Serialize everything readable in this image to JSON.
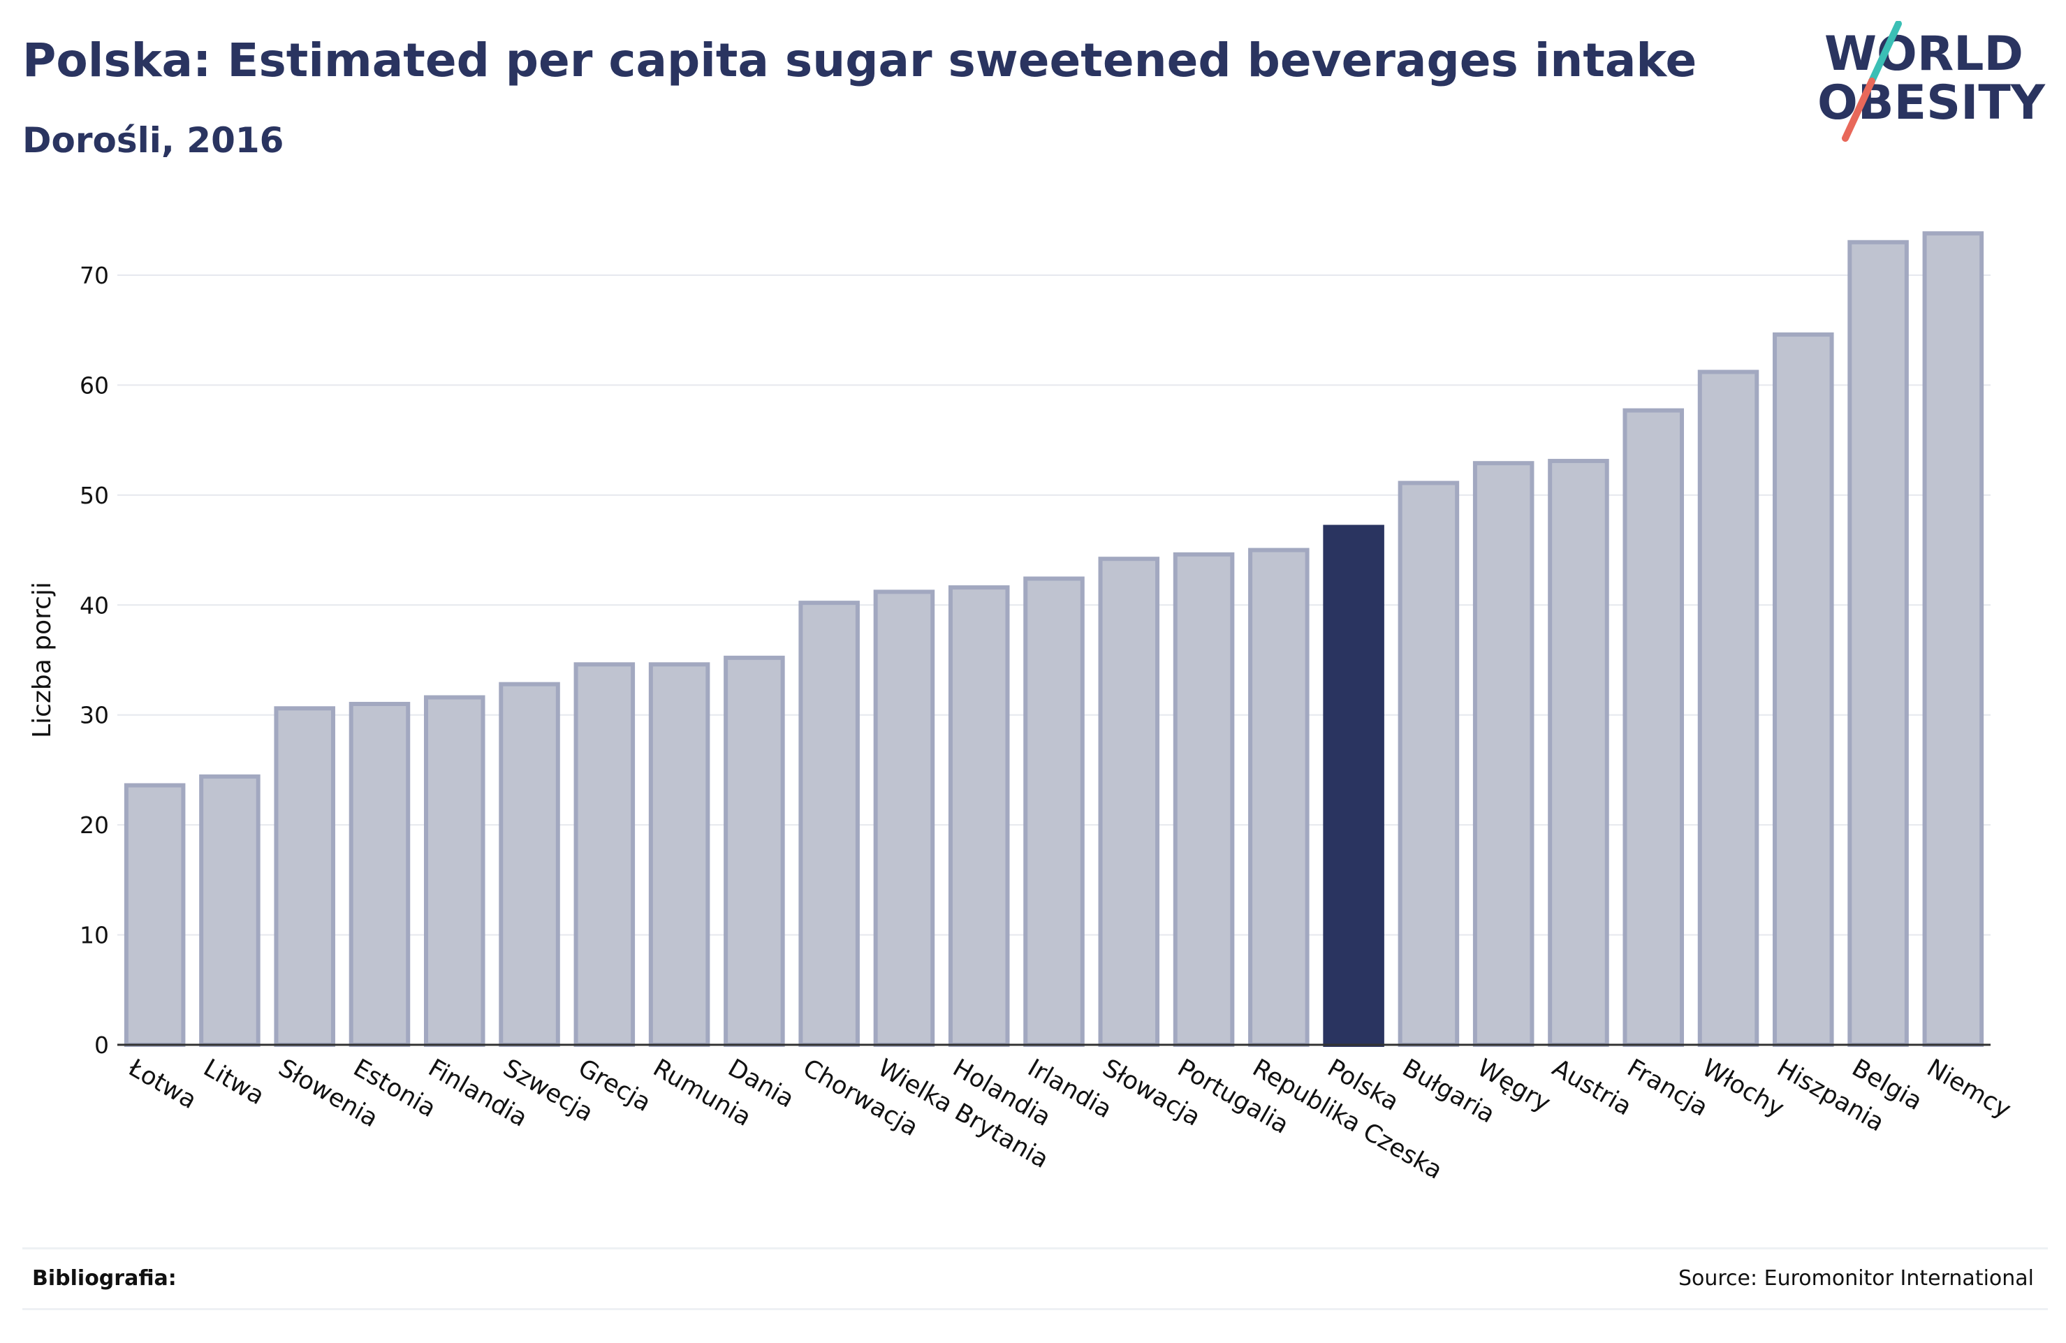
{
  "header": {
    "title": "Polska: Estimated per capita sugar sweetened beverages intake",
    "subtitle": "Dorośli, 2016"
  },
  "logo": {
    "line1": "WORLD",
    "line2": "OBESITY",
    "colors": {
      "text": "#2a3460",
      "slash_top": "#3bbfb5",
      "slash_bottom": "#e8685a"
    }
  },
  "footer": {
    "bibliography_label": "Bibliografia:",
    "source": "Source: Euromonitor International"
  },
  "chart_data": {
    "type": "bar",
    "ylabel": "Liczba porcji",
    "ylim": [
      0,
      75
    ],
    "yticks": [
      0,
      10,
      20,
      30,
      40,
      50,
      60,
      70
    ],
    "grid": true,
    "highlight": "Polska",
    "colors": {
      "bar": "#bfc3d0",
      "bar_border": "#a2a8c0",
      "highlight": "#2a3460",
      "grid": "#e6e8ee"
    },
    "categories": [
      "Łotwa",
      "Litwa",
      "Słowenia",
      "Estonia",
      "Finlandia",
      "Szwecja",
      "Grecja",
      "Rumunia",
      "Dania",
      "Chorwacja",
      "Wielka Brytania",
      "Holandia",
      "Irlandia",
      "Słowacja",
      "Portugalia",
      "Republika Czeska",
      "Polska",
      "Bułgaria",
      "Węgry",
      "Austria",
      "Francja",
      "Włochy",
      "Hiszpania",
      "Belgia",
      "Niemcy"
    ],
    "values": [
      23.6,
      24.4,
      30.6,
      31.0,
      31.6,
      32.8,
      34.6,
      34.6,
      35.2,
      40.2,
      41.2,
      41.6,
      42.4,
      44.2,
      44.6,
      45.0,
      47.1,
      51.1,
      52.9,
      53.1,
      57.7,
      61.2,
      64.6,
      73.0,
      73.8
    ]
  }
}
